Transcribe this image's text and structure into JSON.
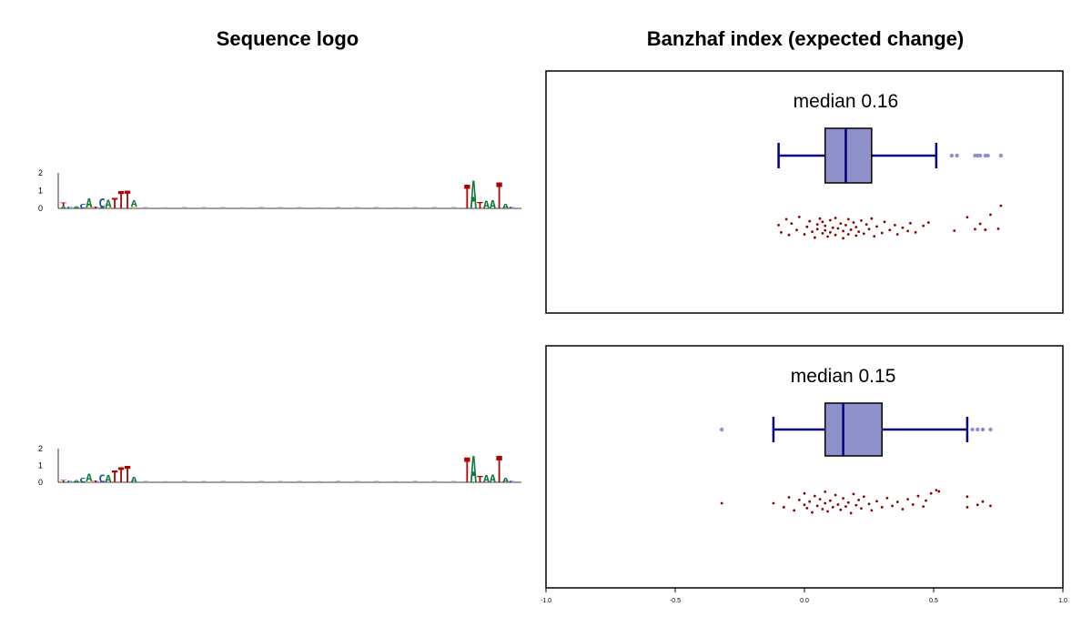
{
  "titles": {
    "left": "Sequence logo",
    "right": "Banzhaf index (expected change)"
  },
  "colors": {
    "box_fill": "#8e91c9",
    "box_line": "#000080",
    "outlier": "#8e91c9",
    "points": "#8b0000",
    "A": "#0f7a3c",
    "C": "#1f4fa0",
    "G": "#e0a000",
    "T": "#b00000"
  },
  "logos": [
    {
      "y_ticks": [
        "0",
        "1",
        "2"
      ],
      "ymax": 2,
      "columns": [
        {
          "pos": 1,
          "letters": [
            {
              "base": "T",
              "h": 0.25
            },
            {
              "base": "A",
              "h": 0.1
            }
          ]
        },
        {
          "pos": 2,
          "letters": [
            {
              "base": "C",
              "h": 0.1
            }
          ]
        },
        {
          "pos": 3,
          "letters": [
            {
              "base": "A",
              "h": 0.15
            }
          ]
        },
        {
          "pos": 4,
          "letters": [
            {
              "base": "C",
              "h": 0.3
            }
          ]
        },
        {
          "pos": 5,
          "letters": [
            {
              "base": "A",
              "h": 0.55
            },
            {
              "base": "G",
              "h": 0.05
            }
          ]
        },
        {
          "pos": 6,
          "letters": [
            {
              "base": "T",
              "h": 0.1
            }
          ]
        },
        {
          "pos": 7,
          "letters": [
            {
              "base": "C",
              "h": 0.55
            },
            {
              "base": "A",
              "h": 0.05
            }
          ]
        },
        {
          "pos": 8,
          "letters": [
            {
              "base": "A",
              "h": 0.45
            },
            {
              "base": "G",
              "h": 0.05
            }
          ]
        },
        {
          "pos": 9,
          "letters": [
            {
              "base": "T",
              "h": 0.65
            }
          ]
        },
        {
          "pos": 10,
          "letters": [
            {
              "base": "T",
              "h": 1.05
            }
          ]
        },
        {
          "pos": 11,
          "letters": [
            {
              "base": "T",
              "h": 1.1
            }
          ]
        },
        {
          "pos": 12,
          "letters": [
            {
              "base": "A",
              "h": 0.4
            },
            {
              "base": "G",
              "h": 0.1
            }
          ]
        },
        {
          "pos": 64,
          "letters": [
            {
              "base": "T",
              "h": 1.45
            }
          ]
        },
        {
          "pos": 65,
          "letters": [
            {
              "base": "A",
              "h": 1.7
            }
          ]
        },
        {
          "pos": 66,
          "letters": [
            {
              "base": "T",
              "h": 0.4
            }
          ]
        },
        {
          "pos": 67,
          "letters": [
            {
              "base": "A",
              "h": 0.45
            }
          ]
        },
        {
          "pos": 68,
          "letters": [
            {
              "base": "A",
              "h": 0.5
            }
          ]
        },
        {
          "pos": 69,
          "letters": [
            {
              "base": "T",
              "h": 1.6
            }
          ]
        },
        {
          "pos": 70,
          "letters": [
            {
              "base": "A",
              "h": 0.3
            }
          ]
        },
        {
          "pos": 71,
          "letters": [
            {
              "base": "C",
              "h": 0.1
            }
          ]
        }
      ]
    },
    {
      "y_ticks": [
        "0",
        "1",
        "2"
      ],
      "ymax": 2,
      "columns": [
        {
          "pos": 1,
          "letters": [
            {
              "base": "T",
              "h": 0.15
            }
          ]
        },
        {
          "pos": 2,
          "letters": [
            {
              "base": "C",
              "h": 0.1
            }
          ]
        },
        {
          "pos": 3,
          "letters": [
            {
              "base": "A",
              "h": 0.15
            }
          ]
        },
        {
          "pos": 4,
          "letters": [
            {
              "base": "C",
              "h": 0.3
            }
          ]
        },
        {
          "pos": 5,
          "letters": [
            {
              "base": "A",
              "h": 0.5
            },
            {
              "base": "G",
              "h": 0.05
            }
          ]
        },
        {
          "pos": 6,
          "letters": [
            {
              "base": "T",
              "h": 0.1
            }
          ]
        },
        {
          "pos": 7,
          "letters": [
            {
              "base": "C",
              "h": 0.5
            }
          ]
        },
        {
          "pos": 8,
          "letters": [
            {
              "base": "A",
              "h": 0.45
            }
          ]
        },
        {
          "pos": 9,
          "letters": [
            {
              "base": "T",
              "h": 0.75
            }
          ]
        },
        {
          "pos": 10,
          "letters": [
            {
              "base": "T",
              "h": 0.95
            }
          ]
        },
        {
          "pos": 11,
          "letters": [
            {
              "base": "T",
              "h": 1.05
            }
          ]
        },
        {
          "pos": 12,
          "letters": [
            {
              "base": "A",
              "h": 0.35
            }
          ]
        },
        {
          "pos": 64,
          "letters": [
            {
              "base": "T",
              "h": 1.6
            }
          ]
        },
        {
          "pos": 65,
          "letters": [
            {
              "base": "A",
              "h": 1.7
            }
          ]
        },
        {
          "pos": 66,
          "letters": [
            {
              "base": "T",
              "h": 0.4
            }
          ]
        },
        {
          "pos": 67,
          "letters": [
            {
              "base": "A",
              "h": 0.45
            }
          ]
        },
        {
          "pos": 68,
          "letters": [
            {
              "base": "A",
              "h": 0.5
            }
          ]
        },
        {
          "pos": 69,
          "letters": [
            {
              "base": "T",
              "h": 1.7
            }
          ]
        },
        {
          "pos": 70,
          "letters": [
            {
              "base": "A",
              "h": 0.3
            }
          ]
        },
        {
          "pos": 71,
          "letters": [
            {
              "base": "C",
              "h": 0.1
            }
          ]
        }
      ]
    }
  ],
  "chart_data": [
    {
      "type": "box",
      "title": "",
      "xlim": [
        -1.0,
        1.0
      ],
      "x_ticks": [
        "-1.0",
        "-0.5",
        "0.0",
        "0.5",
        "1.0"
      ],
      "median_label": "median 0.16",
      "stats": {
        "whisker_low": -0.1,
        "q1": 0.08,
        "median": 0.16,
        "q3": 0.26,
        "whisker_high": 0.51
      },
      "outliers": [
        0.57,
        0.59,
        0.66,
        0.67,
        0.68,
        0.7,
        0.71,
        0.76
      ],
      "points": [
        {
          "x": 0.63,
          "y": -0.34
        },
        {
          "x": 0.66,
          "y": 0.02
        },
        {
          "x": 0.68,
          "y": -0.14
        },
        {
          "x": 0.7,
          "y": 0.04
        },
        {
          "x": 0.72,
          "y": -0.42
        },
        {
          "x": 0.75,
          "y": 0.01
        },
        {
          "x": 0.76,
          "y": -0.69
        },
        {
          "x": 0.58,
          "y": 0.07
        },
        {
          "x": -0.1,
          "y": -0.1
        },
        {
          "x": -0.09,
          "y": 0.12
        },
        {
          "x": -0.07,
          "y": -0.28
        },
        {
          "x": -0.06,
          "y": 0.2
        },
        {
          "x": -0.05,
          "y": -0.15
        },
        {
          "x": -0.03,
          "y": 0.05
        },
        {
          "x": -0.02,
          "y": -0.35
        },
        {
          "x": 0.0,
          "y": 0.18
        },
        {
          "x": 0.01,
          "y": -0.05
        },
        {
          "x": 0.02,
          "y": -0.22
        },
        {
          "x": 0.03,
          "y": 0.1
        },
        {
          "x": 0.04,
          "y": 0.28
        },
        {
          "x": 0.05,
          "y": -0.12
        },
        {
          "x": 0.05,
          "y": 0.02
        },
        {
          "x": 0.06,
          "y": -0.3
        },
        {
          "x": 0.07,
          "y": 0.15
        },
        {
          "x": 0.07,
          "y": -0.2
        },
        {
          "x": 0.08,
          "y": 0.06
        },
        {
          "x": 0.08,
          "y": -0.08
        },
        {
          "x": 0.09,
          "y": 0.25
        },
        {
          "x": 0.1,
          "y": -0.25
        },
        {
          "x": 0.1,
          "y": 0.12
        },
        {
          "x": 0.11,
          "y": -0.02
        },
        {
          "x": 0.12,
          "y": 0.2
        },
        {
          "x": 0.12,
          "y": -0.32
        },
        {
          "x": 0.13,
          "y": 0.0
        },
        {
          "x": 0.14,
          "y": -0.15
        },
        {
          "x": 0.15,
          "y": 0.3
        },
        {
          "x": 0.15,
          "y": 0.08
        },
        {
          "x": 0.16,
          "y": -0.1
        },
        {
          "x": 0.17,
          "y": 0.18
        },
        {
          "x": 0.17,
          "y": -0.28
        },
        {
          "x": 0.18,
          "y": 0.04
        },
        {
          "x": 0.19,
          "y": -0.18
        },
        {
          "x": 0.2,
          "y": 0.22
        },
        {
          "x": 0.2,
          "y": -0.04
        },
        {
          "x": 0.21,
          "y": 0.1
        },
        {
          "x": 0.22,
          "y": -0.24
        },
        {
          "x": 0.23,
          "y": 0.16
        },
        {
          "x": 0.24,
          "y": -0.12
        },
        {
          "x": 0.25,
          "y": 0.02
        },
        {
          "x": 0.26,
          "y": -0.3
        },
        {
          "x": 0.27,
          "y": 0.24
        },
        {
          "x": 0.28,
          "y": -0.06
        },
        {
          "x": 0.3,
          "y": 0.14
        },
        {
          "x": 0.31,
          "y": -0.2
        },
        {
          "x": 0.33,
          "y": 0.05
        },
        {
          "x": 0.35,
          "y": -0.1
        },
        {
          "x": 0.36,
          "y": 0.18
        },
        {
          "x": 0.38,
          "y": -0.02
        },
        {
          "x": 0.4,
          "y": 0.08
        },
        {
          "x": 0.41,
          "y": -0.16
        },
        {
          "x": 0.43,
          "y": 0.12
        },
        {
          "x": 0.46,
          "y": -0.08
        },
        {
          "x": 0.48,
          "y": -0.18
        }
      ]
    },
    {
      "type": "box",
      "title": "",
      "xlim": [
        -1.0,
        1.0
      ],
      "x_ticks": [
        "-1.0",
        "-0.5",
        "0.0",
        "0.5",
        "1.0"
      ],
      "median_label": "median 0.15",
      "stats": {
        "whisker_low": -0.12,
        "q1": 0.08,
        "median": 0.15,
        "q3": 0.3,
        "whisker_high": 0.63
      },
      "outliers": [
        -0.32,
        0.65,
        0.67,
        0.69,
        0.72
      ],
      "points": [
        {
          "x": -0.32,
          "y": 0.0
        },
        {
          "x": 0.63,
          "y": 0.12
        },
        {
          "x": 0.63,
          "y": -0.2
        },
        {
          "x": 0.67,
          "y": 0.05
        },
        {
          "x": 0.69,
          "y": -0.05
        },
        {
          "x": 0.72,
          "y": 0.08
        },
        {
          "x": -0.12,
          "y": 0.0
        },
        {
          "x": -0.08,
          "y": 0.12
        },
        {
          "x": -0.06,
          "y": -0.18
        },
        {
          "x": -0.04,
          "y": 0.22
        },
        {
          "x": -0.02,
          "y": -0.1
        },
        {
          "x": 0.0,
          "y": 0.05
        },
        {
          "x": 0.0,
          "y": -0.3
        },
        {
          "x": 0.01,
          "y": 0.15
        },
        {
          "x": 0.02,
          "y": -0.05
        },
        {
          "x": 0.03,
          "y": 0.28
        },
        {
          "x": 0.04,
          "y": -0.22
        },
        {
          "x": 0.05,
          "y": 0.08
        },
        {
          "x": 0.06,
          "y": -0.12
        },
        {
          "x": 0.07,
          "y": 0.18
        },
        {
          "x": 0.08,
          "y": -0.35
        },
        {
          "x": 0.08,
          "y": 0.0
        },
        {
          "x": 0.09,
          "y": 0.25
        },
        {
          "x": 0.1,
          "y": -0.08
        },
        {
          "x": 0.11,
          "y": 0.12
        },
        {
          "x": 0.12,
          "y": -0.25
        },
        {
          "x": 0.13,
          "y": 0.04
        },
        {
          "x": 0.14,
          "y": 0.2
        },
        {
          "x": 0.15,
          "y": -0.15
        },
        {
          "x": 0.16,
          "y": 0.1
        },
        {
          "x": 0.17,
          "y": -0.02
        },
        {
          "x": 0.18,
          "y": 0.3
        },
        {
          "x": 0.19,
          "y": -0.28
        },
        {
          "x": 0.2,
          "y": 0.06
        },
        {
          "x": 0.21,
          "y": -0.1
        },
        {
          "x": 0.22,
          "y": 0.16
        },
        {
          "x": 0.23,
          "y": -0.2
        },
        {
          "x": 0.25,
          "y": 0.02
        },
        {
          "x": 0.26,
          "y": 0.22
        },
        {
          "x": 0.28,
          "y": -0.06
        },
        {
          "x": 0.3,
          "y": 0.12
        },
        {
          "x": 0.32,
          "y": -0.16
        },
        {
          "x": 0.34,
          "y": 0.08
        },
        {
          "x": 0.36,
          "y": -0.04
        },
        {
          "x": 0.38,
          "y": 0.18
        },
        {
          "x": 0.4,
          "y": -0.12
        },
        {
          "x": 0.42,
          "y": 0.04
        },
        {
          "x": 0.44,
          "y": -0.22
        },
        {
          "x": 0.46,
          "y": 0.1
        },
        {
          "x": 0.47,
          "y": -0.08
        },
        {
          "x": 0.49,
          "y": -0.3
        },
        {
          "x": 0.51,
          "y": -0.4
        },
        {
          "x": 0.52,
          "y": -0.36
        }
      ]
    }
  ]
}
